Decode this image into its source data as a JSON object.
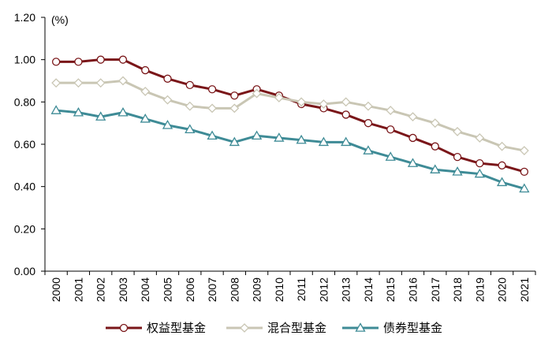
{
  "chart_data": {
    "type": "line",
    "unit_label": "(%)",
    "x": [
      "2000",
      "2001",
      "2002",
      "2003",
      "2004",
      "2005",
      "2006",
      "2007",
      "2008",
      "2009",
      "2010",
      "2011",
      "2012",
      "2013",
      "2014",
      "2015",
      "2016",
      "2017",
      "2018",
      "2019",
      "2020",
      "2021"
    ],
    "ylim": [
      0,
      1.2
    ],
    "yticks": [
      "0.00",
      "0.20",
      "0.40",
      "0.60",
      "0.80",
      "1.00",
      "1.20"
    ],
    "grid": false,
    "legend_position": "bottom",
    "series": [
      {
        "name": "权益型基金",
        "color": "#7a1619",
        "marker": "circle",
        "values": [
          0.99,
          0.99,
          1.0,
          1.0,
          0.95,
          0.91,
          0.88,
          0.86,
          0.83,
          0.86,
          0.83,
          0.79,
          0.77,
          0.74,
          0.7,
          0.67,
          0.63,
          0.59,
          0.54,
          0.51,
          0.5,
          0.47
        ]
      },
      {
        "name": "混合型基金",
        "color": "#c9c6b4",
        "marker": "diamond",
        "values": [
          0.89,
          0.89,
          0.89,
          0.9,
          0.85,
          0.81,
          0.78,
          0.77,
          0.77,
          0.84,
          0.82,
          0.8,
          0.79,
          0.8,
          0.78,
          0.76,
          0.73,
          0.7,
          0.66,
          0.63,
          0.59,
          0.57
        ]
      },
      {
        "name": "债券型基金",
        "color": "#3e8b96",
        "marker": "triangle",
        "values": [
          0.76,
          0.75,
          0.73,
          0.75,
          0.72,
          0.69,
          0.67,
          0.64,
          0.61,
          0.64,
          0.63,
          0.62,
          0.61,
          0.61,
          0.57,
          0.54,
          0.51,
          0.48,
          0.47,
          0.46,
          0.42,
          0.39
        ]
      }
    ]
  }
}
